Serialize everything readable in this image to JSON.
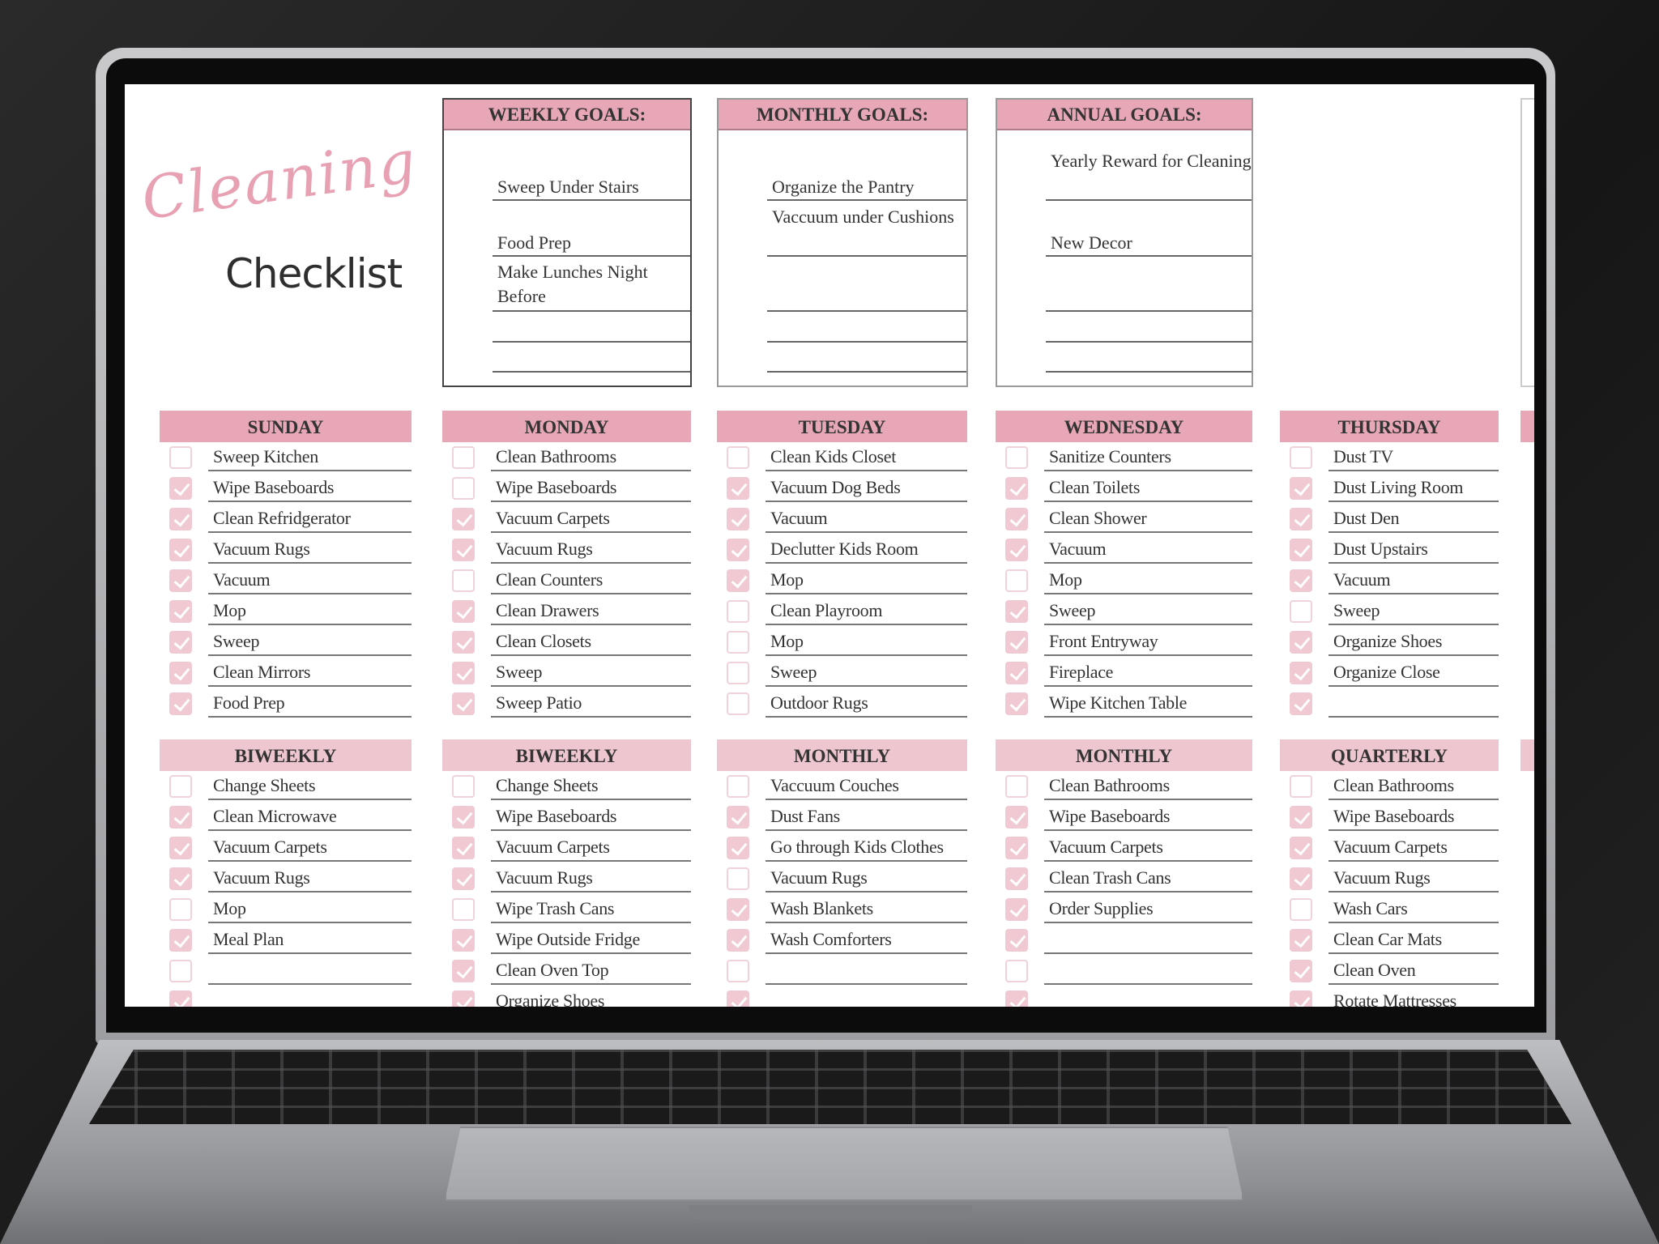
{
  "title": {
    "script": "Cleaning",
    "main": "Checklist"
  },
  "goals": [
    {
      "title": "WEEKLY GOALS:",
      "lines": [
        "Sweep Under Stairs",
        "Food Prep",
        "Make Lunches Night Before",
        "",
        ""
      ]
    },
    {
      "title": "MONTHLY GOALS:",
      "lines": [
        "Organize the Pantry",
        "Vaccuum under Cushions",
        "",
        "",
        ""
      ]
    },
    {
      "title": "ANNUAL GOALS:",
      "lines": [
        "Yearly Reward for Cleaning",
        "New Decor",
        "",
        "",
        ""
      ]
    }
  ],
  "colors": {
    "header_pink": "#e8a7b6",
    "header_light_pink": "#eec6cf",
    "check_pink": "#f0c9d2"
  },
  "days": [
    {
      "title": "SUNDAY",
      "items": [
        [
          "Sweep Kitchen",
          false
        ],
        [
          "Wipe Baseboards",
          true
        ],
        [
          "Clean Refridgerator",
          true
        ],
        [
          "Vacuum Rugs",
          true
        ],
        [
          "Vacuum",
          true
        ],
        [
          "Mop",
          true
        ],
        [
          "Sweep",
          true
        ],
        [
          "Clean Mirrors",
          true
        ],
        [
          "Food Prep",
          true
        ]
      ]
    },
    {
      "title": "MONDAY",
      "items": [
        [
          "Clean Bathrooms",
          false
        ],
        [
          "Wipe Baseboards",
          false
        ],
        [
          "Vacuum Carpets",
          true
        ],
        [
          "Vacuum Rugs",
          true
        ],
        [
          "Clean Counters",
          false
        ],
        [
          "Clean Drawers",
          true
        ],
        [
          "Clean Closets",
          true
        ],
        [
          "Sweep",
          true
        ],
        [
          "Sweep Patio",
          true
        ]
      ]
    },
    {
      "title": "TUESDAY",
      "items": [
        [
          "Clean Kids Closet",
          false
        ],
        [
          "Vacuum Dog Beds",
          true
        ],
        [
          "Vacuum",
          true
        ],
        [
          "Declutter Kids Room",
          true
        ],
        [
          "Mop",
          true
        ],
        [
          "Clean Playroom",
          false
        ],
        [
          "Mop",
          false
        ],
        [
          "Sweep",
          false
        ],
        [
          "Outdoor Rugs",
          false
        ]
      ]
    },
    {
      "title": "WEDNESDAY",
      "items": [
        [
          "Sanitize Counters",
          false
        ],
        [
          "Clean Toilets",
          true
        ],
        [
          "Clean Shower",
          true
        ],
        [
          "Vacuum",
          true
        ],
        [
          "Mop",
          false
        ],
        [
          "Sweep",
          true
        ],
        [
          "Front Entryway",
          true
        ],
        [
          "Fireplace",
          true
        ],
        [
          "Wipe Kitchen Table",
          true
        ]
      ]
    },
    {
      "title": "THURSDAY",
      "items": [
        [
          "Dust TV",
          false
        ],
        [
          "Dust Living Room",
          true
        ],
        [
          "Dust Den",
          true
        ],
        [
          "Dust Upstairs",
          true
        ],
        [
          "Vacuum",
          true
        ],
        [
          "Sweep",
          false
        ],
        [
          "Organize Shoes",
          true
        ],
        [
          "Organize Close",
          true
        ],
        [
          "",
          true
        ]
      ]
    }
  ],
  "periodic": [
    {
      "title": "BIWEEKLY",
      "items": [
        [
          "Change Sheets",
          false
        ],
        [
          "Clean Microwave",
          true
        ],
        [
          "Vacuum Carpets",
          true
        ],
        [
          "Vacuum Rugs",
          true
        ],
        [
          "Mop",
          false
        ],
        [
          "Meal Plan",
          true
        ],
        [
          "",
          false
        ],
        [
          "",
          true
        ]
      ]
    },
    {
      "title": "BIWEEKLY",
      "items": [
        [
          "Change Sheets",
          false
        ],
        [
          "Wipe Baseboards",
          true
        ],
        [
          "Vacuum Carpets",
          true
        ],
        [
          "Vacuum Rugs",
          true
        ],
        [
          "Wipe Trash Cans",
          false
        ],
        [
          "Wipe Outside Fridge",
          true
        ],
        [
          "Clean Oven Top",
          true
        ],
        [
          "Organize Shoes",
          true
        ]
      ]
    },
    {
      "title": "MONTHLY",
      "items": [
        [
          "Vaccuum Couches",
          false
        ],
        [
          "Dust Fans",
          true
        ],
        [
          "Go through Kids Clothes",
          true
        ],
        [
          "Vacuum Rugs",
          false
        ],
        [
          "Wash Blankets",
          true
        ],
        [
          "Wash Comforters",
          true
        ],
        [
          "",
          false
        ],
        [
          "",
          true
        ]
      ]
    },
    {
      "title": "MONTHLY",
      "items": [
        [
          "Clean Bathrooms",
          false
        ],
        [
          "Wipe Baseboards",
          true
        ],
        [
          "Vacuum Carpets",
          true
        ],
        [
          "Clean Trash Cans",
          true
        ],
        [
          "Order Supplies",
          true
        ],
        [
          "",
          true
        ],
        [
          "",
          false
        ],
        [
          "",
          true
        ]
      ]
    },
    {
      "title": "QUARTERLY",
      "items": [
        [
          "Clean Bathrooms",
          false
        ],
        [
          "Wipe Baseboards",
          true
        ],
        [
          "Vacuum Carpets",
          true
        ],
        [
          "Vacuum Rugs",
          true
        ],
        [
          "Wash Cars",
          false
        ],
        [
          "Clean Car Mats",
          true
        ],
        [
          "Clean Oven",
          true
        ],
        [
          "Rotate Mattresses",
          true
        ]
      ]
    }
  ]
}
